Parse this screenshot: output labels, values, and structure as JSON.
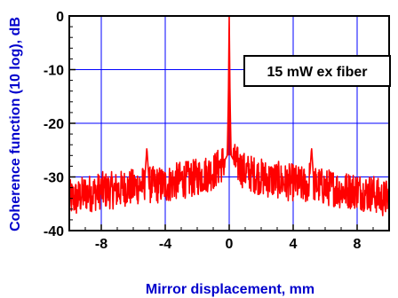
{
  "chart_data": {
    "type": "line",
    "xlabel": "Mirror displacement, mm",
    "ylabel": "Coherence function (10 log), dB",
    "xlim": [
      -10,
      10
    ],
    "ylim": [
      -40,
      0
    ],
    "x_ticks": [
      -8,
      -4,
      0,
      4,
      8
    ],
    "y_ticks": [
      0,
      -10,
      -20,
      -30,
      -40
    ],
    "grid": true,
    "annotation": "15 mW ex fiber",
    "series": [
      {
        "color": "#ff0000",
        "x": [
          -10,
          -9.5,
          -9,
          -8.5,
          -8,
          -7.5,
          -7,
          -6.5,
          -6,
          -5.5,
          -5.3,
          -5.15,
          -5.0,
          -4.5,
          -4,
          -3.5,
          -3,
          -2.5,
          -2,
          -1.5,
          -1,
          -0.6,
          -0.3,
          -0.12,
          -0.05,
          0,
          0.05,
          0.12,
          0.3,
          0.6,
          1,
          1.5,
          2,
          2.5,
          3,
          3.5,
          4,
          4.5,
          5.0,
          5.15,
          5.3,
          5.5,
          6,
          6.5,
          7,
          7.5,
          8,
          8.5,
          9,
          9.5,
          10
        ],
        "y": [
          -34,
          -34,
          -33,
          -33,
          -32.5,
          -32.5,
          -32.5,
          -32,
          -32,
          -31.5,
          -31.5,
          -24.5,
          -31.5,
          -31.5,
          -31.5,
          -31,
          -30.5,
          -30.5,
          -30,
          -29.5,
          -29,
          -28,
          -27,
          -26,
          -15,
          0,
          -15,
          -26,
          -27,
          -28,
          -29,
          -29.5,
          -30,
          -30.5,
          -30.5,
          -31,
          -31,
          -31.5,
          -31.5,
          -24.5,
          -31.5,
          -31.5,
          -32,
          -32,
          -32.5,
          -32.5,
          -32.5,
          -33,
          -33,
          -34,
          -34
        ]
      }
    ]
  }
}
